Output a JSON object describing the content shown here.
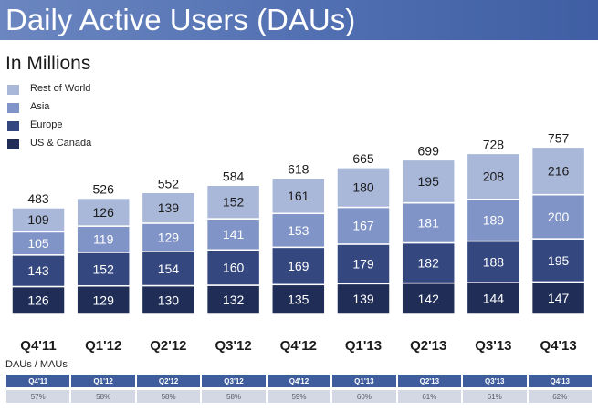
{
  "header": {
    "title": "Daily Active Users (DAUs)"
  },
  "subtitle": "In Millions",
  "colors": {
    "us_canada": "#1f2d57",
    "europe": "#34477f",
    "asia": "#8094c7",
    "rest_of_world": "#a9b8d9",
    "header_bg": "#4e6db0"
  },
  "chart_data": {
    "type": "bar",
    "stacked": true,
    "title": "Daily Active Users (DAUs)",
    "subtitle": "In Millions",
    "categories": [
      "Q4'11",
      "Q1'12",
      "Q2'12",
      "Q3'12",
      "Q4'12",
      "Q1'13",
      "Q2'13",
      "Q3'13",
      "Q4'13"
    ],
    "series": [
      {
        "name": "US & Canada",
        "values": [
          126,
          129,
          130,
          132,
          135,
          139,
          142,
          144,
          147
        ]
      },
      {
        "name": "Europe",
        "values": [
          143,
          152,
          154,
          160,
          169,
          179,
          182,
          188,
          195
        ]
      },
      {
        "name": "Asia",
        "values": [
          105,
          119,
          129,
          141,
          153,
          167,
          181,
          189,
          200
        ]
      },
      {
        "name": "Rest of World",
        "values": [
          109,
          126,
          139,
          152,
          161,
          180,
          195,
          208,
          216
        ]
      }
    ],
    "totals": [
      483,
      526,
      552,
      584,
      618,
      665,
      699,
      728,
      757
    ],
    "ylim": [
      0,
      790
    ],
    "grid": false,
    "legend": "top-left"
  },
  "legend": {
    "items": [
      "Rest of World",
      "Asia",
      "Europe",
      "US & Canada"
    ]
  },
  "dau_mau": {
    "label": "DAUs / MAUs",
    "quarters": [
      "Q4'11",
      "Q1'12",
      "Q2'12",
      "Q3'12",
      "Q4'12",
      "Q1'13",
      "Q2'13",
      "Q3'13",
      "Q4'13"
    ],
    "values": [
      "57%",
      "58%",
      "58%",
      "58%",
      "59%",
      "60%",
      "61%",
      "61%",
      "62%"
    ]
  }
}
